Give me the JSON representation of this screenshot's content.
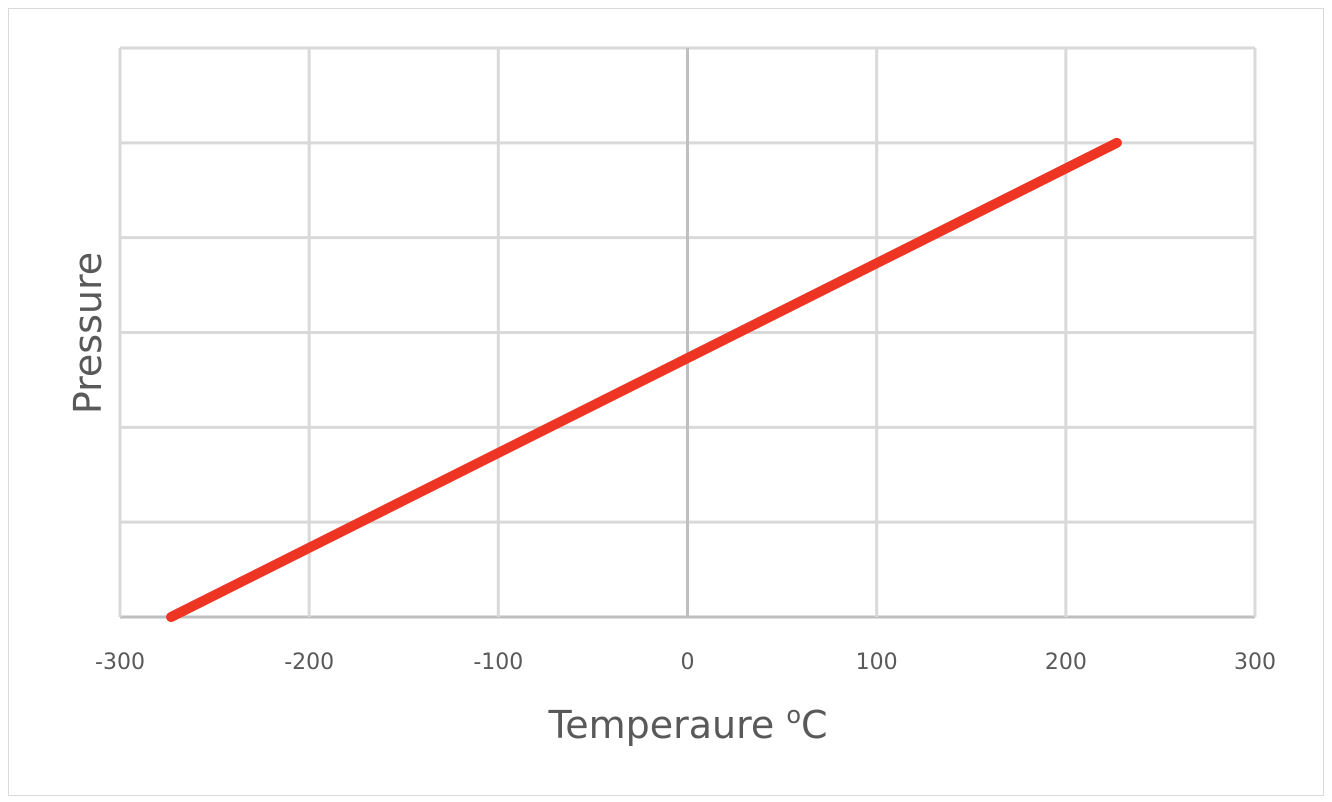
{
  "chart_data": {
    "type": "line",
    "title": "",
    "xlabel": "Temperaure ºC",
    "xlabel_main": "Temperaure ",
    "xlabel_super": "o",
    "xlabel_unit": "C",
    "ylabel": "Pressure",
    "xlim": [
      -300,
      300
    ],
    "xticks": [
      "-300",
      "-200",
      "-100",
      "0",
      "100",
      "200",
      "300"
    ],
    "ylim": [
      0,
      6
    ],
    "y_gridlines": 6,
    "y_tick_labels_shown": false,
    "grid": true,
    "series": [
      {
        "x": [
          -273,
          227
        ],
        "y": [
          0,
          5
        ],
        "color": "#EE3524"
      }
    ],
    "colors": {
      "line": "#EE3524",
      "grid": "#D9D9D9",
      "axis": "#BFBFBF",
      "text": "#595959"
    }
  }
}
